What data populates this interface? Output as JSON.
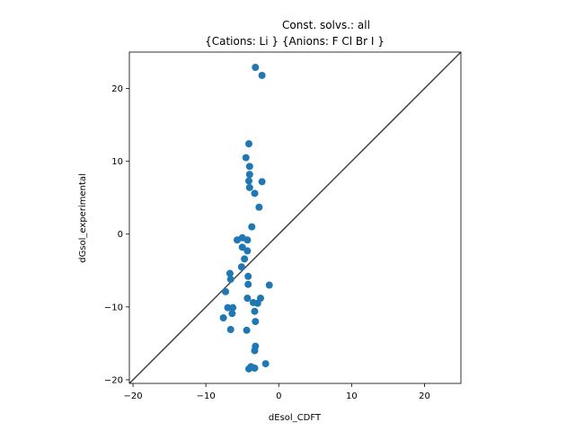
{
  "chart_data": {
    "type": "scatter",
    "title_lines": [
      "Const. solvs.: all",
      "{Cations: Li } {Anions: F Cl Br I }"
    ],
    "xlabel": "dEsol_CDFT",
    "ylabel": "dGsol_experimental",
    "xlim": [
      -20.5,
      25
    ],
    "ylim": [
      -20.5,
      25
    ],
    "xticks": [
      -20,
      -10,
      0,
      10,
      20
    ],
    "yticks": [
      -20,
      -10,
      0,
      10,
      20
    ],
    "grid": false,
    "reference_line": "y = x",
    "point_color": "#1f77b4",
    "line_color": "#404040",
    "points": [
      {
        "x": -3.2,
        "y": 22.9
      },
      {
        "x": -2.3,
        "y": 21.8
      },
      {
        "x": -4.1,
        "y": 12.4
      },
      {
        "x": -4.5,
        "y": 10.5
      },
      {
        "x": -4.0,
        "y": 9.3
      },
      {
        "x": -4.0,
        "y": 8.2
      },
      {
        "x": -4.1,
        "y": 7.3
      },
      {
        "x": -2.3,
        "y": 7.2
      },
      {
        "x": -4.0,
        "y": 6.4
      },
      {
        "x": -3.3,
        "y": 5.6
      },
      {
        "x": -2.7,
        "y": 3.7
      },
      {
        "x": -3.7,
        "y": 1.0
      },
      {
        "x": -5.0,
        "y": -0.5
      },
      {
        "x": -5.7,
        "y": -0.8
      },
      {
        "x": -4.3,
        "y": -0.8
      },
      {
        "x": -5.0,
        "y": -1.8
      },
      {
        "x": -4.3,
        "y": -2.3
      },
      {
        "x": -4.7,
        "y": -3.4
      },
      {
        "x": -5.1,
        "y": -4.5
      },
      {
        "x": -6.7,
        "y": -5.4
      },
      {
        "x": -4.2,
        "y": -5.8
      },
      {
        "x": -6.6,
        "y": -6.2
      },
      {
        "x": -1.3,
        "y": -7.0
      },
      {
        "x": -4.2,
        "y": -6.9
      },
      {
        "x": -7.3,
        "y": -7.9
      },
      {
        "x": -4.3,
        "y": -8.8
      },
      {
        "x": -2.5,
        "y": -8.8
      },
      {
        "x": -2.9,
        "y": -9.5
      },
      {
        "x": -3.5,
        "y": -9.4
      },
      {
        "x": -7.0,
        "y": -10.1
      },
      {
        "x": -6.3,
        "y": -10.1
      },
      {
        "x": -3.3,
        "y": -10.6
      },
      {
        "x": -6.4,
        "y": -10.9
      },
      {
        "x": -7.6,
        "y": -11.5
      },
      {
        "x": -3.2,
        "y": -12.0
      },
      {
        "x": -6.6,
        "y": -13.1
      },
      {
        "x": -4.4,
        "y": -13.2
      },
      {
        "x": -3.2,
        "y": -15.4
      },
      {
        "x": -3.3,
        "y": -16.0
      },
      {
        "x": -1.8,
        "y": -17.8
      },
      {
        "x": -3.8,
        "y": -18.2
      },
      {
        "x": -3.3,
        "y": -18.4
      },
      {
        "x": -4.1,
        "y": -18.5
      }
    ]
  }
}
